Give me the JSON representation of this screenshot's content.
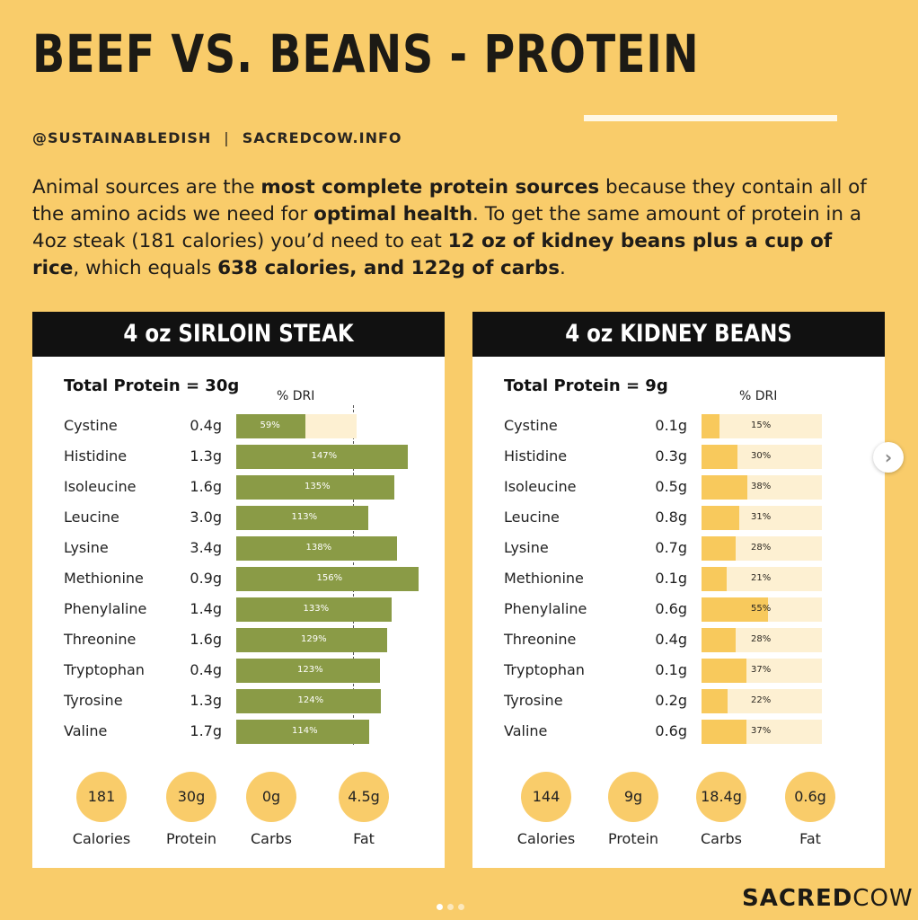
{
  "title": "BEEF VS. BEANS - PROTEIN",
  "byline": {
    "handle": "@SUSTAINABLEDISH",
    "separator": "|",
    "site": "SACREDCOW.INFO"
  },
  "intro": {
    "p1": "Animal sources are the ",
    "b1": "most complete protein sources",
    "p2": " because they contain all of the amino acids we need for ",
    "b2": "optimal health",
    "p3": ". To get the same amount of protein in a 4oz steak (181 calories) you’d need to eat ",
    "b3": "12 oz of kidney beans plus a cup of rice",
    "p4": ", which equals ",
    "b4": "638 calories, and 122g of carbs",
    "p5": "."
  },
  "colors": {
    "background": "#f9cc6a",
    "steak_bar": "#8a9b46",
    "bean_bar": "#f8c95c",
    "track": "#fdf0d2"
  },
  "chart_data": [
    {
      "type": "bar",
      "orientation": "horizontal",
      "title": "4 oz SIRLOIN STEAK",
      "subtitle": "Total Protein = 30g",
      "value_label": "% DRI",
      "reference_line": 100,
      "xlim": [
        0,
        160
      ],
      "categories": [
        "Cystine",
        "Histidine",
        "Isoleucine",
        "Leucine",
        "Lysine",
        "Methionine",
        "Phenylaline",
        "Threonine",
        "Tryptophan",
        "Tyrosine",
        "Valine"
      ],
      "amounts": [
        "0.4g",
        "1.3g",
        "1.6g",
        "3.0g",
        "3.4g",
        "0.9g",
        "1.4g",
        "1.6g",
        "0.4g",
        "1.3g",
        "1.7g"
      ],
      "values": [
        59,
        147,
        135,
        113,
        138,
        156,
        133,
        129,
        123,
        124,
        114
      ],
      "value_labels": [
        "59%",
        "147%",
        "135%",
        "113%",
        "138%",
        "156%",
        "133%",
        "129%",
        "123%",
        "124%",
        "114%"
      ],
      "stats": [
        {
          "value": "181",
          "label": "Calories"
        },
        {
          "value": "30g",
          "label": "Protein"
        },
        {
          "value": "0g",
          "label": "Carbs"
        },
        {
          "value": "4.5g",
          "label": "Fat"
        }
      ]
    },
    {
      "type": "bar",
      "orientation": "horizontal",
      "title": "4 oz KIDNEY BEANS",
      "subtitle": "Total Protein = 9g",
      "value_label": "% DRI",
      "xlim": [
        0,
        100
      ],
      "categories": [
        "Cystine",
        "Histidine",
        "Isoleucine",
        "Leucine",
        "Lysine",
        "Methionine",
        "Phenylaline",
        "Threonine",
        "Tryptophan",
        "Tyrosine",
        "Valine"
      ],
      "amounts": [
        "0.1g",
        "0.3g",
        "0.5g",
        "0.8g",
        "0.7g",
        "0.1g",
        "0.6g",
        "0.4g",
        "0.1g",
        "0.2g",
        "0.6g"
      ],
      "values": [
        15,
        30,
        38,
        31,
        28,
        21,
        55,
        28,
        37,
        22,
        37
      ],
      "value_labels": [
        "15%",
        "30%",
        "38%",
        "31%",
        "28%",
        "21%",
        "55%",
        "28%",
        "37%",
        "22%",
        "37%"
      ],
      "stats": [
        {
          "value": "144",
          "label": "Calories"
        },
        {
          "value": "9g",
          "label": "Protein"
        },
        {
          "value": "18.4g",
          "label": "Carbs"
        },
        {
          "value": "0.6g",
          "label": "Fat"
        }
      ]
    }
  ],
  "brand": {
    "bold": "SACRED",
    "light": "COW"
  },
  "carousel": {
    "next_icon": "chevron-right-icon",
    "next_glyph": "›",
    "pages": 3,
    "active": 0
  }
}
